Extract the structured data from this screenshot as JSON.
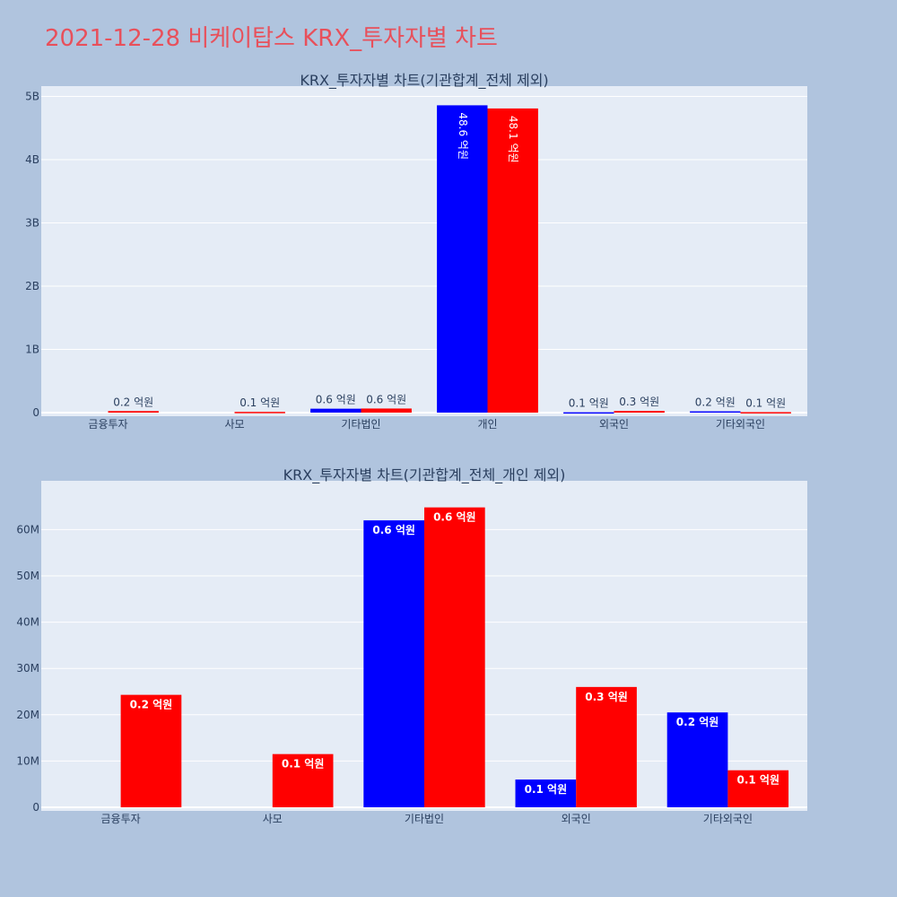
{
  "page": {
    "title": "2021-12-28 비케이탑스 KRX_투자자별 차트",
    "title_color": "#e8505b",
    "background": "#b0c4de"
  },
  "colors": {
    "plot_bg": "#e5ecf6",
    "grid": "#ffffff",
    "text": "#2a3f5f",
    "series_a": "#0000ff",
    "series_b": "#ff0000"
  },
  "chart_data": [
    {
      "type": "bar",
      "title": "KRX_투자자별 차트(기관합계_전체 제외)",
      "categories": [
        "금융투자",
        "사모",
        "기타법인",
        "개인",
        "외국인",
        "기타외국인"
      ],
      "ylim": [
        0,
        5050000000
      ],
      "yticks": [
        {
          "value": 0,
          "label": "0"
        },
        {
          "value": 1000000000,
          "label": "1B"
        },
        {
          "value": 2000000000,
          "label": "2B"
        },
        {
          "value": 3000000000,
          "label": "3B"
        },
        {
          "value": 4000000000,
          "label": "4B"
        },
        {
          "value": 5000000000,
          "label": "5B"
        }
      ],
      "grid": true,
      "series": [
        {
          "color": "#0000ff",
          "values": [
            0,
            0,
            62000000,
            4860000000,
            6000000,
            20500000
          ],
          "labels": [
            "",
            "",
            "0.6 억원",
            "48.6 억원",
            "0.1 억원",
            "0.2 억원"
          ]
        },
        {
          "color": "#ff0000",
          "values": [
            24300000,
            11500000,
            64800000,
            4810000000,
            26000000,
            8000000
          ],
          "labels": [
            "0.2 억원",
            "0.1 억원",
            "0.6 억원",
            "48.1 억원",
            "0.3 억원",
            "0.1 억원"
          ]
        }
      ]
    },
    {
      "type": "bar",
      "title": "KRX_투자자별 차트(기관합계_전체_개인 제외)",
      "categories": [
        "금융투자",
        "사모",
        "기타법인",
        "외국인",
        "기타외국인"
      ],
      "ylim": [
        0,
        69000000
      ],
      "yticks": [
        {
          "value": 0,
          "label": "0"
        },
        {
          "value": 10000000,
          "label": "10M"
        },
        {
          "value": 20000000,
          "label": "20M"
        },
        {
          "value": 30000000,
          "label": "30M"
        },
        {
          "value": 40000000,
          "label": "40M"
        },
        {
          "value": 50000000,
          "label": "50M"
        },
        {
          "value": 60000000,
          "label": "60M"
        }
      ],
      "grid": true,
      "series": [
        {
          "color": "#0000ff",
          "values": [
            0,
            0,
            62000000,
            6000000,
            20500000
          ],
          "labels": [
            "",
            "",
            "0.6 억원",
            "0.1 억원",
            "0.2 억원"
          ]
        },
        {
          "color": "#ff0000",
          "values": [
            24300000,
            11500000,
            64800000,
            26000000,
            8000000
          ],
          "labels": [
            "0.2 억원",
            "0.1 억원",
            "0.6 억원",
            "0.3 억원",
            "0.1 억원"
          ]
        }
      ]
    }
  ]
}
